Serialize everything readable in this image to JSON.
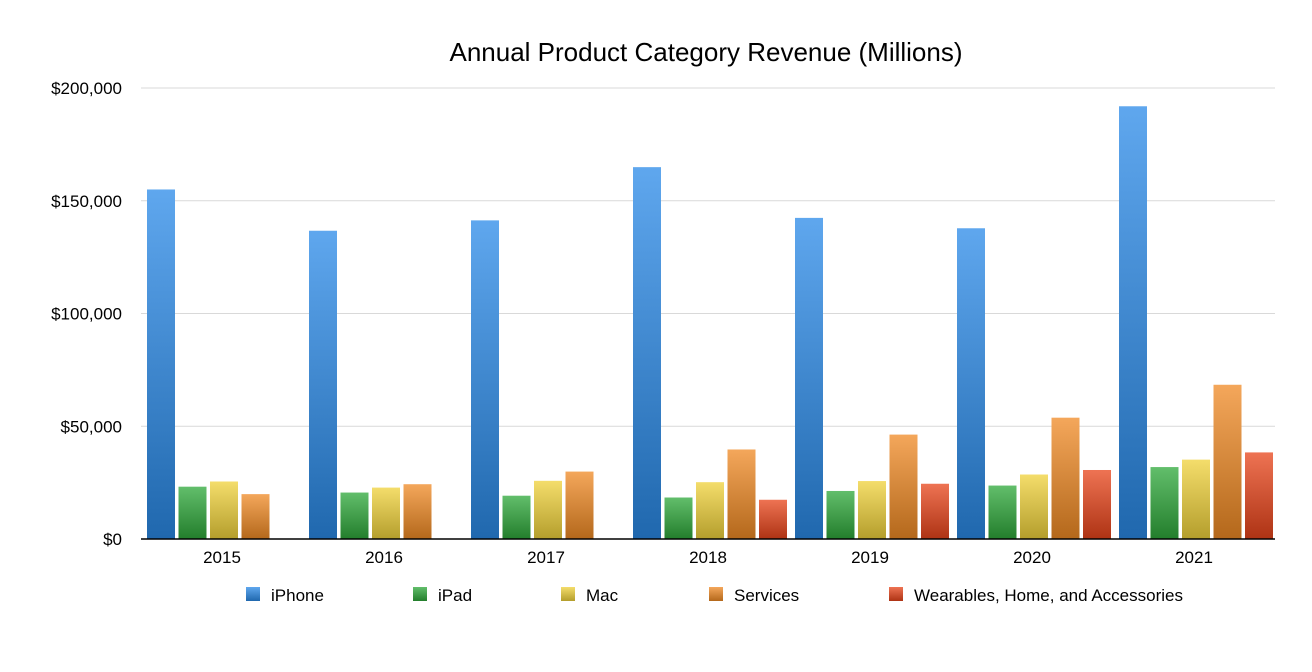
{
  "chart_data": {
    "type": "bar",
    "title": "Annual Product Category Revenue (Millions)",
    "xlabel": "",
    "ylabel": "",
    "categories": [
      "2015",
      "2016",
      "2017",
      "2018",
      "2019",
      "2020",
      "2021"
    ],
    "ylim": [
      0,
      200000
    ],
    "yticks": [
      0,
      50000,
      100000,
      150000,
      200000
    ],
    "ytick_labels": [
      "$0",
      "$50,000",
      "$100,000",
      "$150,000",
      "$200,000"
    ],
    "grid": true,
    "legend_position": "bottom",
    "series": [
      {
        "name": "iPhone",
        "color": "#2a8ae8",
        "values": [
          155000,
          136700,
          141300,
          164900,
          142400,
          137800,
          191900
        ]
      },
      {
        "name": "iPad",
        "color": "#2ea83a",
        "values": [
          23200,
          20600,
          19200,
          18400,
          21300,
          23700,
          31900
        ]
      },
      {
        "name": "Mac",
        "color": "#f0d23a",
        "values": [
          25500,
          22800,
          25800,
          25200,
          25700,
          28600,
          35200
        ]
      },
      {
        "name": "Services",
        "color": "#f08a24",
        "values": [
          19900,
          24300,
          29900,
          39700,
          46300,
          53800,
          68400
        ]
      },
      {
        "name": "Wearables, Home, and Accessories",
        "color": "#e8441a",
        "values": [
          null,
          null,
          null,
          17400,
          24500,
          30600,
          38400
        ]
      }
    ]
  }
}
